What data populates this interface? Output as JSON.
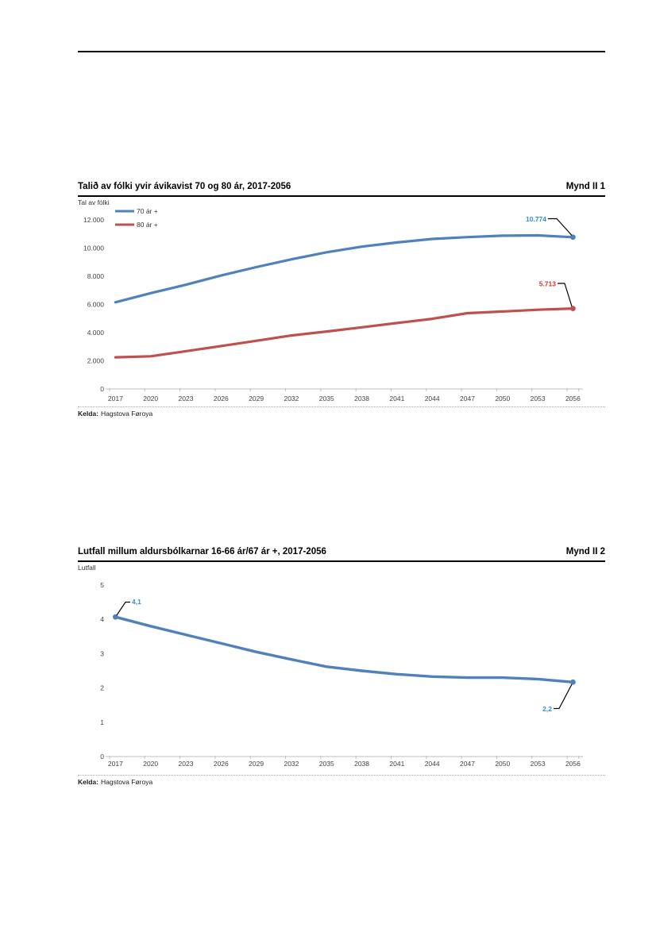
{
  "figures": [
    {
      "title": "Talið av fólki yvir ávikavist 70 og 80 ár, 2017-2056",
      "figure_label": "Mynd II 1",
      "axis_unit": "Tal av fólki",
      "source_label": "Kelda:",
      "source_text": "Hagstova Føroya"
    },
    {
      "title": "Lutfall millum aldursbólkarnar 16-66 ár/67 ár +, 2017-2056",
      "figure_label": "Mynd II 2",
      "axis_unit": "Lutfall",
      "source_label": "Kelda:",
      "source_text": "Hagstova Føroya"
    }
  ],
  "chart_data": [
    {
      "type": "line",
      "title": "Talið av fólki yvir ávikavist 70 og 80 ár, 2017-2056",
      "figure_label": "Mynd II 1",
      "ylabel": "Tal av fólki",
      "xlabel": "",
      "x": [
        2017,
        2020,
        2023,
        2026,
        2029,
        2032,
        2035,
        2038,
        2041,
        2044,
        2047,
        2050,
        2053,
        2056
      ],
      "ylim": [
        0,
        12000
      ],
      "ytick_values": [
        0,
        2000,
        4000,
        6000,
        8000,
        10000,
        12000
      ],
      "ytick_labels": [
        "0",
        "2.000",
        "4.000",
        "6.000",
        "8.000",
        "10.000",
        "12.000"
      ],
      "grid": false,
      "legend_position": "top-left",
      "series": [
        {
          "name": "70 ár +",
          "color": "#4F81BD",
          "label_color": "#2E90D0",
          "values": [
            6150,
            6800,
            7400,
            8050,
            8650,
            9200,
            9700,
            10100,
            10400,
            10650,
            10780,
            10880,
            10900,
            10774
          ],
          "end_label": "10.774"
        },
        {
          "name": "80 ár +",
          "color": "#C0504D",
          "label_color": "#CC3333",
          "values": [
            2250,
            2320,
            2680,
            3050,
            3420,
            3800,
            4080,
            4380,
            4680,
            4980,
            5380,
            5500,
            5620,
            5713
          ],
          "end_label": "5.713"
        }
      ],
      "source": "Kelda: Hagstova Føroya"
    },
    {
      "type": "line",
      "title": "Lutfall millum aldursbólkarnar 16-66 ár/67 ár +, 2017-2056",
      "figure_label": "Mynd II 2",
      "ylabel": "Lutfall",
      "xlabel": "",
      "x": [
        2017,
        2020,
        2023,
        2026,
        2029,
        2032,
        2035,
        2038,
        2041,
        2044,
        2047,
        2050,
        2053,
        2056
      ],
      "ylim": [
        0,
        5
      ],
      "ytick_values": [
        0,
        1,
        2,
        3,
        4,
        5
      ],
      "ytick_labels": [
        "0",
        "1",
        "2",
        "3",
        "4",
        "5"
      ],
      "grid": false,
      "legend_position": "none",
      "series": [
        {
          "name": "16-66 ár/67 ár +",
          "color": "#4F81BD",
          "label_color": "#2E90D0",
          "values": [
            4.07,
            3.8,
            3.55,
            3.3,
            3.05,
            2.83,
            2.62,
            2.5,
            2.4,
            2.33,
            2.3,
            2.3,
            2.26,
            2.17
          ],
          "start_label": "4,1",
          "end_label": "2,2"
        }
      ],
      "source": "Kelda: Hagstova Føroya"
    }
  ]
}
